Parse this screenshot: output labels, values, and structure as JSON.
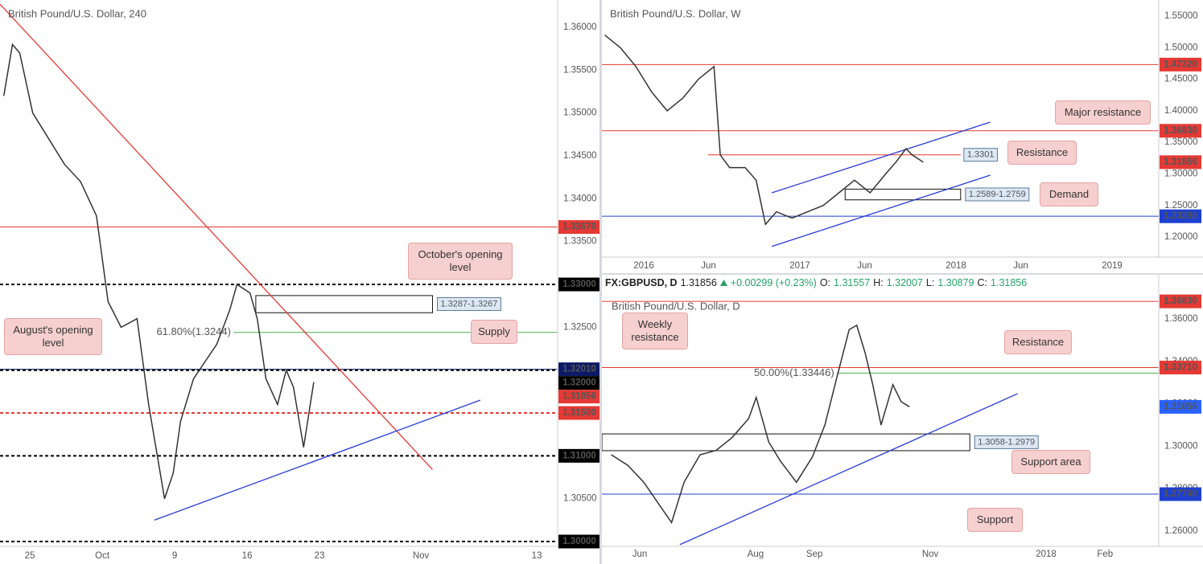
{
  "chart_data": [
    {
      "type": "line",
      "title": "British Pound/U.S. Dollar, 240",
      "x": [
        -1.8,
        -1.2,
        -0.7,
        0.2,
        1.3,
        2.4,
        3.5,
        4.6,
        5.4,
        6.3,
        7.4,
        8.2,
        8.8,
        9.3,
        9.9,
        10.4,
        11.3,
        12.1,
        12.9,
        13.8,
        14.3,
        15.2,
        15.7,
        16.3,
        17.1,
        17.7,
        18.2,
        18.9,
        19.6
      ],
      "values": [
        1.352,
        1.358,
        1.357,
        1.35,
        1.347,
        1.344,
        1.342,
        1.338,
        1.328,
        1.325,
        1.326,
        1.316,
        1.31,
        1.305,
        1.308,
        1.314,
        1.319,
        1.321,
        1.323,
        1.327,
        1.33,
        1.329,
        1.326,
        1.319,
        1.316,
        1.32,
        1.318,
        1.311,
        1.3186
      ],
      "color": "#333333",
      "xlim": [
        -2.06,
        36.44
      ],
      "xticks": [
        {
          "value": 0,
          "label": "25"
        },
        {
          "value": 5,
          "label": "Oct"
        },
        {
          "value": 10,
          "label": "9"
        },
        {
          "value": 15,
          "label": "16"
        },
        {
          "value": 20,
          "label": "23"
        },
        {
          "value": 27,
          "label": "Nov"
        },
        {
          "value": 35,
          "label": "13"
        }
      ],
      "ylim": [
        1.29944,
        1.36319
      ],
      "yticks": [
        {
          "value": 1.3,
          "label": "1.30000"
        },
        {
          "value": 1.305,
          "label": "1.30500"
        },
        {
          "value": 1.31,
          "label": "1.31000"
        },
        {
          "value": 1.315,
          "label": "1.31500"
        },
        {
          "value": 1.32,
          "label": "1.32000"
        },
        {
          "value": 1.325,
          "label": "1.32500"
        },
        {
          "value": 1.33,
          "label": "1.33000"
        },
        {
          "value": 1.335,
          "label": "1.33500"
        },
        {
          "value": 1.34,
          "label": "1.34000"
        },
        {
          "value": 1.345,
          "label": "1.34500"
        },
        {
          "value": 1.35,
          "label": "1.35000"
        },
        {
          "value": 1.355,
          "label": "1.35500"
        },
        {
          "value": 1.36,
          "label": "1.36000"
        }
      ],
      "levels": [
        {
          "value": 1.3367,
          "label": "1.33670",
          "color": "#e53935"
        },
        {
          "value": 1.33,
          "label": "1.33000",
          "color": "#000000",
          "dashed": true
        },
        {
          "value": 1.3201,
          "label": "1.32010",
          "color": "#0d1a66"
        },
        {
          "value": 1.32,
          "label": "1.32000",
          "color": "#000000",
          "dashed": true
        },
        {
          "value": 1.31856,
          "label": "1.31856",
          "color": "#e53935",
          "line": false
        },
        {
          "value": 1.315,
          "label": "1.31500",
          "color": "#e53935",
          "dashed": true
        },
        {
          "value": 1.31,
          "label": "1.31000",
          "color": "#000000",
          "dashed": true
        },
        {
          "value": 1.3,
          "label": "1.30000",
          "color": "#000000",
          "dashed": true
        },
        {
          "value": 1.3244,
          "tag": "61.80%(1.3244)",
          "color": "#4caf50",
          "from": 14.05
        }
      ],
      "zones": [
        {
          "range": [
            1.3267,
            1.3287
          ],
          "label": "1.3287-1.3267",
          "from": 15.6,
          "to": 27.8
        }
      ],
      "trendlines": [
        {
          "color": "#e53935",
          "points": [
            [
              -2.06,
              1.3627
            ],
            [
              27.8,
              1.3084
            ]
          ]
        },
        {
          "color": "#2a3bd6",
          "points": [
            [
              8.6,
              1.3025
            ],
            [
              31.1,
              1.3165
            ]
          ]
        }
      ],
      "callouts": [
        "October's opening level",
        "Supply",
        "August's opening level"
      ]
    },
    {
      "type": "line",
      "title": "British Pound/U.S. Dollar, W",
      "x": [
        2015.75,
        2015.85,
        2015.95,
        2016.05,
        2016.15,
        2016.25,
        2016.35,
        2016.45,
        2016.49,
        2016.55,
        2016.65,
        2016.72,
        2016.78,
        2016.85,
        2016.95,
        2017.05,
        2017.15,
        2017.25,
        2017.35,
        2017.45,
        2017.55,
        2017.62,
        2017.68,
        2017.72,
        2017.79
      ],
      "values": [
        1.52,
        1.5,
        1.47,
        1.43,
        1.4,
        1.42,
        1.45,
        1.47,
        1.33,
        1.31,
        1.31,
        1.29,
        1.22,
        1.24,
        1.23,
        1.24,
        1.25,
        1.27,
        1.29,
        1.27,
        1.3,
        1.32,
        1.34,
        1.33,
        1.3186
      ],
      "color": "#333333",
      "xlim": [
        2015.732,
        2019.299
      ],
      "xticks": [
        2016,
        {
          "value": 2016.415,
          "label": "Jun"
        },
        2017,
        {
          "value": 2017.415,
          "label": "Jun"
        },
        2018,
        {
          "value": 2018.415,
          "label": "Jun"
        },
        2019
      ],
      "ylim": [
        1.1682,
        1.5755
      ],
      "yticks": [
        {
          "value": 1.2,
          "label": "1.20000"
        },
        {
          "value": 1.25,
          "label": "1.25000"
        },
        {
          "value": 1.3,
          "label": "1.30000"
        },
        {
          "value": 1.35,
          "label": "1.35000"
        },
        {
          "value": 1.4,
          "label": "1.40000"
        },
        {
          "value": 1.45,
          "label": "1.45000"
        },
        {
          "value": 1.5,
          "label": "1.50000"
        },
        {
          "value": 1.55,
          "label": "1.55000"
        }
      ],
      "levels": [
        {
          "value": 1.4732,
          "label": "1.47320",
          "color": "#e53935"
        },
        {
          "value": 1.3683,
          "label": "1.36830",
          "color": "#e53935"
        },
        {
          "value": 1.31856,
          "label": "1.31856",
          "color": "#e53935",
          "line": false
        },
        {
          "value": 1.2329,
          "label": "1.23290",
          "color": "#1e3fcf"
        },
        {
          "value": 1.3301,
          "tag": "1.3301",
          "color": "#e53935",
          "from": 2016.41,
          "to": 2018.03
        }
      ],
      "zones": [
        {
          "range": [
            1.2589,
            1.2759
          ],
          "label": "1.2589-1.2759",
          "from": 2017.29,
          "to": 2018.03
        }
      ],
      "trendlines": [
        {
          "color": "#2a3bd6",
          "points": [
            [
              2016.82,
              1.27
            ],
            [
              2018.22,
              1.382
            ]
          ]
        },
        {
          "color": "#2a3bd6",
          "points": [
            [
              2016.82,
              1.185
            ],
            [
              2018.22,
              1.298
            ]
          ]
        }
      ],
      "callouts": [
        "Major resistance",
        "Resistance",
        "Demand"
      ]
    },
    {
      "type": "line",
      "title": "British Pound/U.S. Dollar, D",
      "header": {
        "symbol": "FX:GBPUSD, D",
        "last": "1.31856",
        "change": "+0.00299 (+0.23%)",
        "ohlc": [
          {
            "label": "O:",
            "value": "1.31557"
          },
          {
            "label": "H:",
            "value": "1.32007"
          },
          {
            "label": "L:",
            "value": "1.30879"
          },
          {
            "label": "C:",
            "value": "1.31856"
          }
        ]
      },
      "x": [
        2017.373,
        2017.397,
        2017.42,
        2017.443,
        2017.46,
        2017.478,
        2017.501,
        2017.524,
        2017.547,
        2017.571,
        2017.582,
        2017.6,
        2017.617,
        2017.64,
        2017.663,
        2017.681,
        2017.698,
        2017.716,
        2017.727,
        2017.739,
        2017.75,
        2017.762,
        2017.779,
        2017.791,
        2017.803
      ],
      "values": [
        1.296,
        1.291,
        1.283,
        1.272,
        1.264,
        1.283,
        1.296,
        1.298,
        1.304,
        1.313,
        1.323,
        1.302,
        1.293,
        1.283,
        1.295,
        1.31,
        1.332,
        1.355,
        1.357,
        1.344,
        1.329,
        1.31,
        1.329,
        1.321,
        1.3186
      ],
      "color": "#333333",
      "xlim": [
        2017.3595,
        2018.1624
      ],
      "xticks": [
        {
          "value": 2017.414,
          "label": "Jun"
        },
        {
          "value": 2017.581,
          "label": "Aug"
        },
        {
          "value": 2017.666,
          "label": "Sep"
        },
        {
          "value": 2017.833,
          "label": "Nov"
        },
        2018,
        {
          "value": 2018.085,
          "label": "Feb"
        }
      ],
      "ylim": [
        1.2528,
        1.37326
      ],
      "yticks": [
        {
          "value": 1.26,
          "label": "1.26000"
        },
        {
          "value": 1.28,
          "label": "1.28000"
        },
        {
          "value": 1.3,
          "label": "1.30000"
        },
        {
          "value": 1.32,
          "label": "1.32000"
        },
        {
          "value": 1.34,
          "label": "1.34000"
        },
        {
          "value": 1.36,
          "label": "1.36000"
        }
      ],
      "levels": [
        {
          "value": 1.3683,
          "label": "1.36830",
          "color": "#e53935"
        },
        {
          "value": 1.3371,
          "label": "1.33710",
          "color": "#e53935"
        },
        {
          "value": 1.31856,
          "label": "1.31856",
          "color": "#2962ff",
          "line": false
        },
        {
          "value": 1.2774,
          "label": "1.27740",
          "color": "#1e3fcf"
        },
        {
          "value": 1.33446,
          "tag": "50.00%(1.33446)",
          "color": "#4caf50",
          "from": 2017.698
        }
      ],
      "zones": [
        {
          "range": [
            1.2979,
            1.3058
          ],
          "label": "1.3058-1.2979",
          "from": 2017.3595,
          "to": 2017.89
        }
      ],
      "trendlines": [
        {
          "color": "#2a3bd6",
          "points": [
            [
              2017.472,
              1.2536
            ],
            [
              2017.959,
              1.3248
            ]
          ]
        }
      ],
      "callouts": [
        "Weekly resistance",
        "Resistance",
        "Support area",
        "Support"
      ]
    }
  ]
}
